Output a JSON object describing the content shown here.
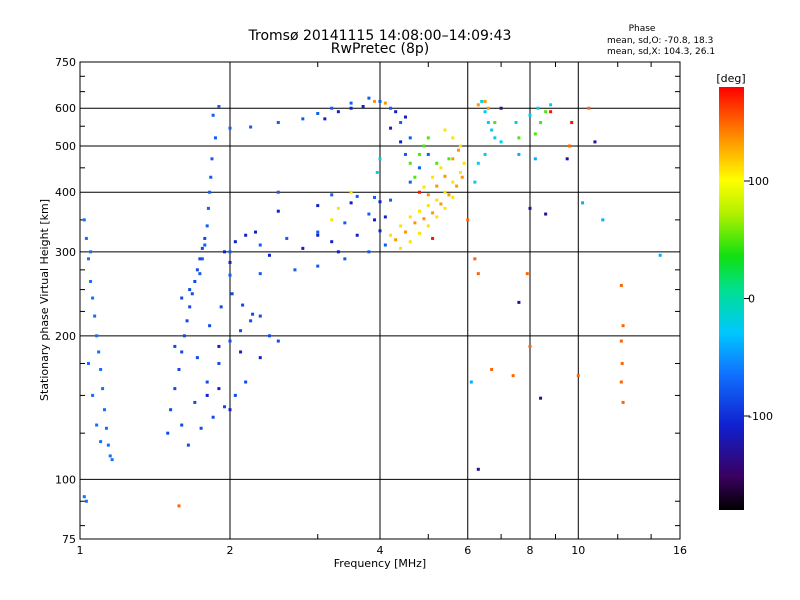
{
  "chart_data": {
    "type": "scatter",
    "title": "Tromsø 20141115 14:08:00–14:09:43",
    "subtitle": "RwPretec (8p)",
    "xlabel": "Frequency [MHz]",
    "ylabel": "Stationary phase Virtual Height [km]",
    "x_scale": "log",
    "y_scale": "log",
    "xlim": [
      1,
      16
    ],
    "ylim": [
      75,
      750
    ],
    "x_ticks": [
      1,
      2,
      4,
      6,
      8,
      10,
      16
    ],
    "x_tick_labels": [
      "1",
      "2",
      "4",
      "6",
      "8",
      "10",
      "16"
    ],
    "y_ticks": [
      75,
      100,
      200,
      300,
      400,
      500,
      600,
      750
    ],
    "y_tick_labels": [
      "75",
      "100",
      "200",
      "300",
      "400",
      "500",
      "600",
      "750"
    ],
    "grid": true,
    "stats": {
      "heading": "Phase",
      "line_o": "mean, sd,O: -70.8, 18.3",
      "line_x": "mean, sd,X: 104.3, 26.1"
    },
    "colorbar": {
      "label": "[deg]",
      "range": [
        -180,
        180
      ],
      "ticks": [
        100,
        0,
        -100
      ],
      "tick_labels": [
        "100",
        "0",
        "-100"
      ],
      "colormap": "rainbow"
    },
    "series": [
      {
        "phase_deg": -75,
        "points": [
          [
            1.9,
            605
          ],
          [
            1.85,
            580
          ],
          [
            2.0,
            545
          ],
          [
            2.2,
            548
          ],
          [
            2.5,
            560
          ],
          [
            2.8,
            570
          ],
          [
            3.0,
            585
          ],
          [
            3.2,
            600
          ],
          [
            3.5,
            615
          ],
          [
            3.8,
            630
          ],
          [
            4.0,
            620
          ],
          [
            4.2,
            600
          ],
          [
            4.4,
            560
          ],
          [
            4.6,
            520
          ],
          [
            4.5,
            480
          ],
          [
            1.87,
            520
          ],
          [
            1.84,
            470
          ],
          [
            1.83,
            430
          ],
          [
            1.82,
            400
          ],
          [
            1.81,
            370
          ],
          [
            1.8,
            340
          ],
          [
            1.78,
            310
          ],
          [
            1.76,
            290
          ],
          [
            1.74,
            270
          ],
          [
            2.0,
            268
          ],
          [
            2.3,
            270
          ],
          [
            2.7,
            275
          ],
          [
            3.0,
            280
          ],
          [
            3.4,
            290
          ],
          [
            3.8,
            300
          ],
          [
            4.1,
            310
          ],
          [
            2.0,
            300
          ],
          [
            2.3,
            310
          ],
          [
            2.6,
            320
          ],
          [
            3.0,
            330
          ],
          [
            3.4,
            345
          ],
          [
            3.8,
            360
          ],
          [
            2.5,
            400
          ],
          [
            3.2,
            395
          ],
          [
            3.6,
            392
          ],
          [
            3.9,
            390
          ],
          [
            4.2,
            385
          ],
          [
            4.6,
            420
          ],
          [
            4.8,
            450
          ],
          [
            5.0,
            480
          ]
        ]
      },
      {
        "phase_deg": -85,
        "points": [
          [
            1.5,
            125
          ],
          [
            1.52,
            140
          ],
          [
            1.55,
            155
          ],
          [
            1.58,
            170
          ],
          [
            1.6,
            185
          ],
          [
            1.62,
            200
          ],
          [
            1.64,
            215
          ],
          [
            1.66,
            230
          ],
          [
            1.68,
            245
          ],
          [
            1.7,
            260
          ],
          [
            1.72,
            275
          ],
          [
            1.74,
            290
          ],
          [
            1.76,
            305
          ],
          [
            1.78,
            320
          ],
          [
            1.6,
            130
          ],
          [
            1.7,
            145
          ],
          [
            1.8,
            160
          ],
          [
            1.9,
            175
          ],
          [
            2.0,
            195
          ],
          [
            2.1,
            205
          ],
          [
            2.2,
            215
          ],
          [
            2.3,
            220
          ],
          [
            2.4,
            200
          ],
          [
            2.5,
            195
          ],
          [
            1.65,
            118
          ],
          [
            1.75,
            128
          ],
          [
            1.85,
            135
          ],
          [
            1.95,
            142
          ],
          [
            2.05,
            150
          ],
          [
            2.15,
            160
          ],
          [
            1.55,
            190
          ],
          [
            1.6,
            240
          ],
          [
            1.66,
            250
          ],
          [
            1.72,
            180
          ],
          [
            1.82,
            210
          ],
          [
            1.92,
            230
          ],
          [
            2.02,
            245
          ],
          [
            2.12,
            232
          ],
          [
            2.22,
            222
          ]
        ]
      },
      {
        "phase_deg": -65,
        "points": [
          [
            1.02,
            350
          ],
          [
            1.03,
            320
          ],
          [
            1.04,
            290
          ],
          [
            1.05,
            260
          ],
          [
            1.06,
            240
          ],
          [
            1.07,
            220
          ],
          [
            1.08,
            200
          ],
          [
            1.09,
            185
          ],
          [
            1.1,
            170
          ],
          [
            1.11,
            155
          ],
          [
            1.12,
            140
          ],
          [
            1.13,
            128
          ],
          [
            1.14,
            118
          ],
          [
            1.15,
            112
          ],
          [
            1.16,
            110
          ],
          [
            1.04,
            175
          ],
          [
            1.06,
            150
          ],
          [
            1.08,
            130
          ],
          [
            1.1,
            120
          ],
          [
            1.05,
            300
          ],
          [
            1.02,
            92
          ],
          [
            1.03,
            90
          ]
        ]
      },
      {
        "phase_deg": -110,
        "points": [
          [
            3.1,
            570
          ],
          [
            3.3,
            590
          ],
          [
            3.5,
            600
          ],
          [
            3.7,
            605
          ],
          [
            2.0,
            285
          ],
          [
            2.4,
            295
          ],
          [
            2.8,
            305
          ],
          [
            3.2,
            315
          ],
          [
            3.6,
            325
          ],
          [
            4.0,
            332
          ],
          [
            2.5,
            365
          ],
          [
            3.0,
            375
          ],
          [
            3.5,
            380
          ],
          [
            4.0,
            382
          ],
          [
            1.9,
            190
          ],
          [
            2.1,
            185
          ],
          [
            2.3,
            180
          ],
          [
            1.8,
            150
          ],
          [
            1.9,
            155
          ],
          [
            2.0,
            140
          ],
          [
            1.95,
            300
          ],
          [
            2.05,
            315
          ],
          [
            2.15,
            325
          ],
          [
            2.25,
            330
          ],
          [
            4.3,
            590
          ],
          [
            4.5,
            575
          ],
          [
            4.2,
            545
          ],
          [
            4.4,
            510
          ],
          [
            3.9,
            350
          ],
          [
            4.1,
            355
          ],
          [
            3.0,
            325
          ],
          [
            3.3,
            300
          ]
        ]
      },
      {
        "phase_deg": 110,
        "points": [
          [
            4.2,
            325
          ],
          [
            4.4,
            340
          ],
          [
            4.6,
            355
          ],
          [
            4.8,
            365
          ],
          [
            5.0,
            375
          ],
          [
            5.2,
            385
          ],
          [
            5.4,
            400
          ],
          [
            5.6,
            420
          ],
          [
            5.8,
            440
          ],
          [
            5.9,
            460
          ],
          [
            5.8,
            500
          ],
          [
            5.6,
            520
          ],
          [
            5.4,
            540
          ],
          [
            4.4,
            305
          ],
          [
            4.6,
            315
          ],
          [
            4.8,
            328
          ],
          [
            5.0,
            340
          ],
          [
            5.2,
            355
          ],
          [
            5.4,
            370
          ],
          [
            5.6,
            390
          ],
          [
            4.9,
            410
          ],
          [
            5.1,
            430
          ],
          [
            5.3,
            450
          ],
          [
            3.2,
            350
          ],
          [
            3.3,
            370
          ],
          [
            3.5,
            400
          ]
        ]
      },
      {
        "phase_deg": 135,
        "points": [
          [
            4.5,
            330
          ],
          [
            4.7,
            345
          ],
          [
            4.9,
            352
          ],
          [
            5.1,
            362
          ],
          [
            5.3,
            378
          ],
          [
            5.5,
            395
          ],
          [
            5.7,
            412
          ],
          [
            5.85,
            430
          ],
          [
            4.3,
            318
          ],
          [
            5.0,
            395
          ],
          [
            5.2,
            412
          ],
          [
            5.4,
            432
          ],
          [
            5.6,
            470
          ],
          [
            5.75,
            490
          ],
          [
            3.9,
            620
          ],
          [
            4.1,
            615
          ],
          [
            6.6,
            600
          ],
          [
            6.5,
            620
          ],
          [
            6.3,
            610
          ]
        ]
      },
      {
        "phase_deg": 50,
        "points": [
          [
            4.6,
            460
          ],
          [
            4.8,
            480
          ],
          [
            4.9,
            500
          ],
          [
            5.0,
            520
          ],
          [
            5.2,
            460
          ],
          [
            5.5,
            470
          ],
          [
            4.7,
            430
          ],
          [
            7.6,
            520
          ],
          [
            8.2,
            530
          ],
          [
            8.4,
            560
          ],
          [
            8.6,
            590
          ],
          [
            6.8,
            560
          ]
        ]
      },
      {
        "phase_deg": -20,
        "points": [
          [
            6.4,
            620
          ],
          [
            6.5,
            590
          ],
          [
            6.6,
            560
          ],
          [
            6.7,
            540
          ],
          [
            6.8,
            520
          ],
          [
            6.5,
            480
          ],
          [
            6.3,
            460
          ],
          [
            7.0,
            510
          ],
          [
            7.5,
            560
          ],
          [
            8.0,
            580
          ],
          [
            8.3,
            600
          ],
          [
            8.8,
            610
          ],
          [
            6.2,
            420
          ],
          [
            4.0,
            470
          ],
          [
            3.95,
            440
          ]
        ]
      },
      {
        "phase_deg": 150,
        "points": [
          [
            6.0,
            350
          ],
          [
            6.2,
            290
          ],
          [
            6.3,
            270
          ],
          [
            7.9,
            270
          ],
          [
            12.2,
            255
          ],
          [
            12.3,
            210
          ],
          [
            12.2,
            195
          ],
          [
            12.25,
            175
          ],
          [
            12.2,
            160
          ],
          [
            12.3,
            145
          ],
          [
            10.0,
            165
          ],
          [
            10.5,
            600
          ],
          [
            9.6,
            500
          ],
          [
            6.7,
            170
          ],
          [
            7.4,
            165
          ],
          [
            8.0,
            190
          ],
          [
            1.58,
            88
          ]
        ]
      },
      {
        "phase_deg": -130,
        "points": [
          [
            7.6,
            235
          ],
          [
            8.4,
            148
          ],
          [
            6.3,
            105
          ],
          [
            10.8,
            510
          ],
          [
            8.0,
            370
          ],
          [
            8.6,
            360
          ],
          [
            7.0,
            600
          ],
          [
            9.5,
            470
          ]
        ]
      },
      {
        "phase_deg": -40,
        "points": [
          [
            11.2,
            350
          ],
          [
            14.6,
            295
          ],
          [
            10.2,
            380
          ],
          [
            7.6,
            480
          ],
          [
            8.2,
            470
          ],
          [
            6.1,
            160
          ]
        ]
      },
      {
        "phase_deg": 175,
        "points": [
          [
            8.8,
            590
          ],
          [
            9.7,
            560
          ],
          [
            4.8,
            400
          ],
          [
            5.1,
            320
          ]
        ]
      }
    ]
  }
}
